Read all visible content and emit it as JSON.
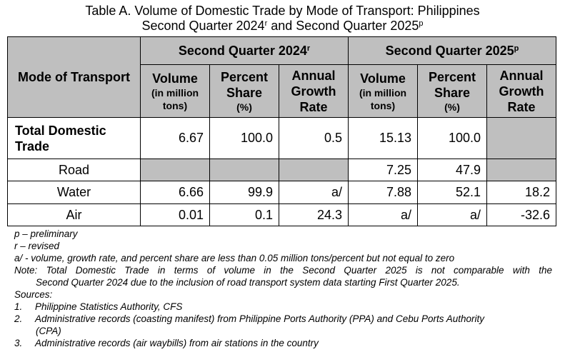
{
  "title": {
    "line1": "Table A. Volume of Domestic Trade by Mode of Transport: Philippines",
    "line2_pre": "Second Quarter 2024",
    "line2_sup1": "r",
    "line2_mid": " and Second Quarter 2025",
    "line2_sup2": "p"
  },
  "table": {
    "mode_header": "Mode of Transport",
    "group1": {
      "label": "Second Quarter 2024",
      "sup": "r"
    },
    "group2": {
      "label": "Second Quarter 2025",
      "sup": "p"
    },
    "col_volume": {
      "main": "Volume",
      "unit": "(in million tons)"
    },
    "col_share": {
      "main": "Percent Share",
      "unit": "(%)"
    },
    "col_growth": "Annual Growth Rate",
    "rows": [
      {
        "mode": "Total Domestic Trade",
        "v24": "6.67",
        "s24": "100.0",
        "g24": "0.5",
        "v25": "15.13",
        "s25": "100.0",
        "g25": ""
      },
      {
        "mode": "Road",
        "v24": "",
        "s24": "",
        "g24": "",
        "v25": "7.25",
        "s25": "47.9",
        "g25": ""
      },
      {
        "mode": "Water",
        "v24": "6.66",
        "s24": "99.9",
        "g24": "a/",
        "v25": "7.88",
        "s25": "52.1",
        "g25": "18.2"
      },
      {
        "mode": "Air",
        "v24": "0.01",
        "s24": "0.1",
        "g24": "24.3",
        "v25": "a/",
        "s25": "a/",
        "g25": "-32.6"
      }
    ]
  },
  "notes": {
    "p": "p – preliminary",
    "r": "r – revised",
    "a": "a/ - volume, growth rate, and percent share are less than 0.05 million tons/percent but not equal to zero",
    "note_line1": "Note: Total Domestic Trade in terms of volume in the Second Quarter 2025 is not comparable with the",
    "note_line2": "Second Quarter 2024 due to the inclusion of road transport system data starting First Quarter 2025.",
    "sources_label": "Sources:",
    "sources": [
      {
        "num": "1.",
        "text": "Philippine Statistics Authority, CFS"
      },
      {
        "num": "2.",
        "text": "Administrative records (coasting manifest) from Philippine Ports Authority (PPA) and Cebu Ports Authority",
        "cont": "(CPA)"
      },
      {
        "num": "3.",
        "text": "Administrative records (air waybills) from air stations in the country"
      }
    ]
  }
}
